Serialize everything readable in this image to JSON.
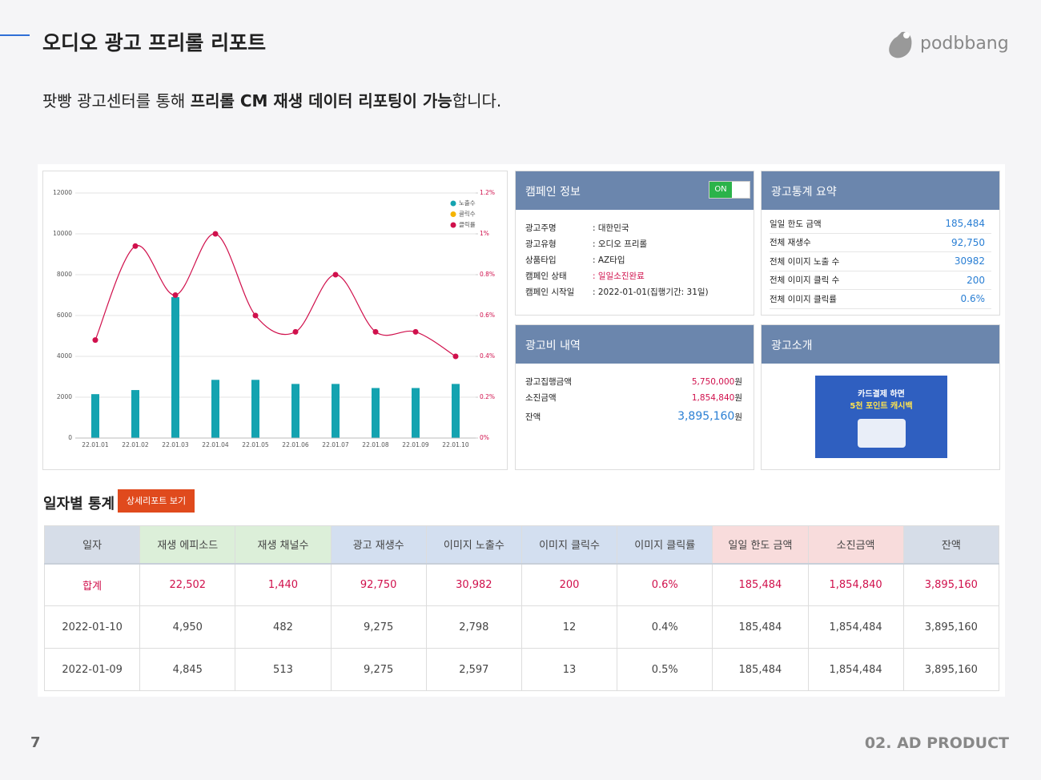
{
  "header": {
    "title": "오디오 광고 프리롤 리포트",
    "logo": "podbbang"
  },
  "subtitle": {
    "lead": "팟빵 광고센터를 통해 ",
    "bold": "프리롤 CM 재생 데이터 리포팅이 가능",
    "tail": "합니다."
  },
  "chart_data": {
    "type": "bar",
    "categories": [
      "22.01.01",
      "22.01.02",
      "22.01.03",
      "22.01.04",
      "22.01.05",
      "22.01.06",
      "22.01.07",
      "22.01.08",
      "22.01.09",
      "22.01.10"
    ],
    "series": [
      {
        "name": "노출수",
        "color": "#14a3b0",
        "values": [
          2150,
          2350,
          6900,
          2850,
          2850,
          2650,
          2650,
          2450,
          2450,
          2650
        ]
      },
      {
        "name": "클릭수",
        "color": "#f5b400",
        "values": [
          null,
          null,
          null,
          null,
          null,
          null,
          null,
          null,
          null,
          null
        ]
      },
      {
        "name": "클릭률",
        "color": "#d0104c",
        "axis": "y2",
        "values": [
          0.48,
          0.94,
          0.7,
          1.0,
          0.6,
          0.52,
          0.8,
          0.52,
          0.52,
          0.4
        ]
      }
    ],
    "ylim": [
      0,
      12000
    ],
    "yticks": [
      0,
      2000,
      4000,
      6000,
      8000,
      10000,
      12000
    ],
    "y2lim": [
      0,
      1.2
    ],
    "y2ticks": [
      {
        "value": 0,
        "label": "0%"
      },
      {
        "value": 0.2,
        "label": "0.2%"
      },
      {
        "value": 0.4,
        "label": "0.4%"
      },
      {
        "value": 0.6,
        "label": "0.6%"
      },
      {
        "value": 0.8,
        "label": "0.8%"
      },
      {
        "value": 1,
        "label": "1%"
      },
      {
        "value": 1.2,
        "label": "1.2%"
      }
    ],
    "grid": true,
    "legend": "top-right"
  },
  "campaign": {
    "title": "캠페인 정보",
    "toggle": "ON",
    "rows": [
      {
        "label": "광고주명",
        "value": ": 대한민국"
      },
      {
        "label": "광고유형",
        "value": ": 오디오 프리롤"
      },
      {
        "label": "상품타입",
        "value": ": AZ타입"
      },
      {
        "label": "캠페인 상태",
        "value": ": 일일소진완료",
        "alert": true
      },
      {
        "label": "캠페인 시작일",
        "value": ": 2022-01-01(집행기간: 31일)"
      }
    ]
  },
  "summary": {
    "title": "광고통계 요약",
    "rows": [
      {
        "label": "일일 한도 금액",
        "value": "185,484"
      },
      {
        "label": "전체 재생수",
        "value": "92,750"
      },
      {
        "label": "전체 이미지 노출 수",
        "value": "30982"
      },
      {
        "label": "전체 이미지 클릭 수",
        "value": "200"
      },
      {
        "label": "전체 이미지 클릭률",
        "value": "0.6%"
      }
    ]
  },
  "cost": {
    "title": "광고비 내역",
    "rows": [
      {
        "label": "광고집행금액",
        "amount": "5,750,000",
        "unit": "원"
      },
      {
        "label": "소진금액",
        "amount": "1,854,840",
        "unit": "원"
      },
      {
        "label": "잔액",
        "amount": "3,895,160",
        "unit": "원"
      }
    ]
  },
  "intro": {
    "title": "광고소개",
    "banner": [
      "카드결제 하면",
      "5천 포인트 캐시백"
    ]
  },
  "daily": {
    "title": "일자별 통계",
    "button": "상세리포트 보기",
    "table": {
      "header": [
        "일자",
        "재생 에피소드",
        "재생 채널수",
        "광고 재생수",
        "이미지 노출수",
        "이미지 클릭수",
        "이미지 클릭률",
        "일일 한도 금액",
        "소진금액",
        "잔액"
      ],
      "rows": [
        [
          "합계",
          "22,502",
          "1,440",
          "92,750",
          "30,982",
          "200",
          "0.6%",
          "185,484",
          "1,854,840",
          "3,895,160"
        ],
        [
          "2022-01-10",
          "4,950",
          "482",
          "9,275",
          "2,798",
          "12",
          "0.4%",
          "185,484",
          "1,854,484",
          "3,895,160"
        ],
        [
          "2022-01-09",
          "4,845",
          "513",
          "9,275",
          "2,597",
          "13",
          "0.5%",
          "185,484",
          "1,854,484",
          "3,895,160"
        ]
      ]
    }
  },
  "footer": {
    "page": "7",
    "section": "02. AD PRODUCT"
  }
}
